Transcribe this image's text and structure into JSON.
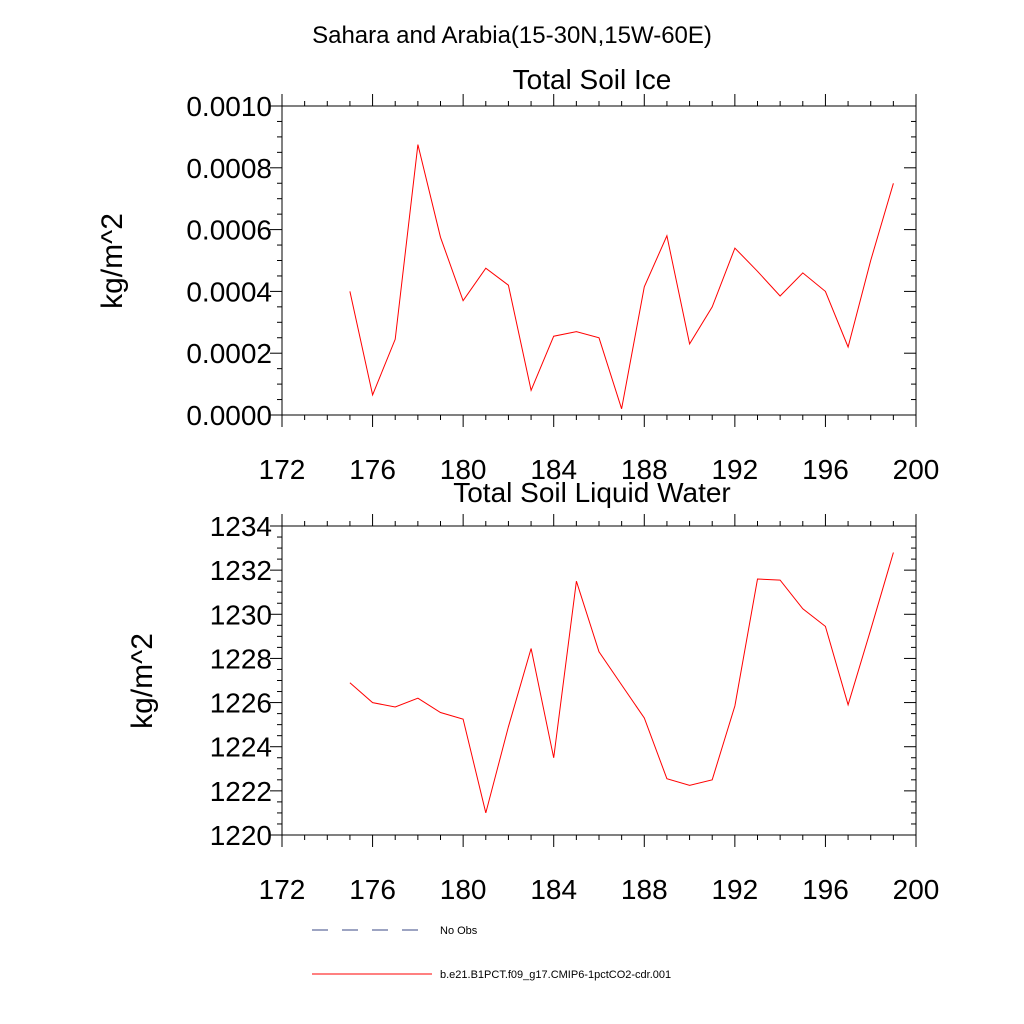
{
  "figure": {
    "title": "Sahara and Arabia(15-30N,15W-60E)"
  },
  "chart_data": [
    {
      "type": "line",
      "title": "Total Soil Ice",
      "xlabel": "",
      "ylabel": "kg/m^2",
      "xlim": [
        172,
        200
      ],
      "ylim": [
        0,
        0.001
      ],
      "x_ticks": [
        "172",
        "176",
        "180",
        "184",
        "188",
        "192",
        "196",
        "200"
      ],
      "y_ticks": [
        "0.0000",
        "0.0002",
        "0.0004",
        "0.0006",
        "0.0008",
        "0.0010"
      ],
      "series": [
        {
          "name": "b.e21.B1PCT.f09_g17.CMIP6-1pctCO2-cdr.001",
          "color": "#ff0000",
          "x": [
            175,
            176,
            177,
            178,
            179,
            180,
            181,
            182,
            183,
            184,
            185,
            186,
            187,
            188,
            189,
            190,
            191,
            192,
            193,
            194,
            195,
            196,
            197,
            198,
            199
          ],
          "y": [
            0.0004,
            6.5e-05,
            0.000245,
            0.000875,
            0.000575,
            0.00037,
            0.000475,
            0.00042,
            8e-05,
            0.000255,
            0.00027,
            0.00025,
            2e-05,
            0.000415,
            0.00058,
            0.00023,
            0.00035,
            0.00054,
            0.000465,
            0.000385,
            0.00046,
            0.0004,
            0.00022,
            0.0005,
            0.00075
          ]
        }
      ]
    },
    {
      "type": "line",
      "title": "Total Soil Liquid Water",
      "xlabel": "",
      "ylabel": "kg/m^2",
      "xlim": [
        172,
        200
      ],
      "ylim": [
        1220,
        1234
      ],
      "x_ticks": [
        "172",
        "176",
        "180",
        "184",
        "188",
        "192",
        "196",
        "200"
      ],
      "y_ticks": [
        "1220",
        "1222",
        "1224",
        "1226",
        "1228",
        "1230",
        "1232",
        "1234"
      ],
      "series": [
        {
          "name": "b.e21.B1PCT.f09_g17.CMIP6-1pctCO2-cdr.001",
          "color": "#ff0000",
          "x": [
            175,
            176,
            177,
            178,
            179,
            180,
            181,
            182,
            183,
            184,
            185,
            186,
            187,
            188,
            189,
            190,
            191,
            192,
            193,
            194,
            195,
            196,
            197,
            198,
            199
          ],
          "y": [
            1226.9,
            1226.0,
            1225.8,
            1226.2,
            1225.55,
            1225.25,
            1221.0,
            1224.9,
            1228.45,
            1223.5,
            1231.5,
            1228.3,
            1226.8,
            1225.3,
            1222.55,
            1222.25,
            1222.5,
            1225.85,
            1231.6,
            1231.55,
            1230.25,
            1229.45,
            1225.9,
            1229.3,
            1232.8
          ]
        }
      ]
    }
  ],
  "legend": {
    "placement": "bottom",
    "items": [
      {
        "label": "No Obs",
        "color": "#3b4a86",
        "style": "dashed"
      },
      {
        "label": "b.e21.B1PCT.f09_g17.CMIP6-1pctCO2-cdr.001",
        "color": "#ff0000",
        "style": "solid"
      }
    ]
  }
}
